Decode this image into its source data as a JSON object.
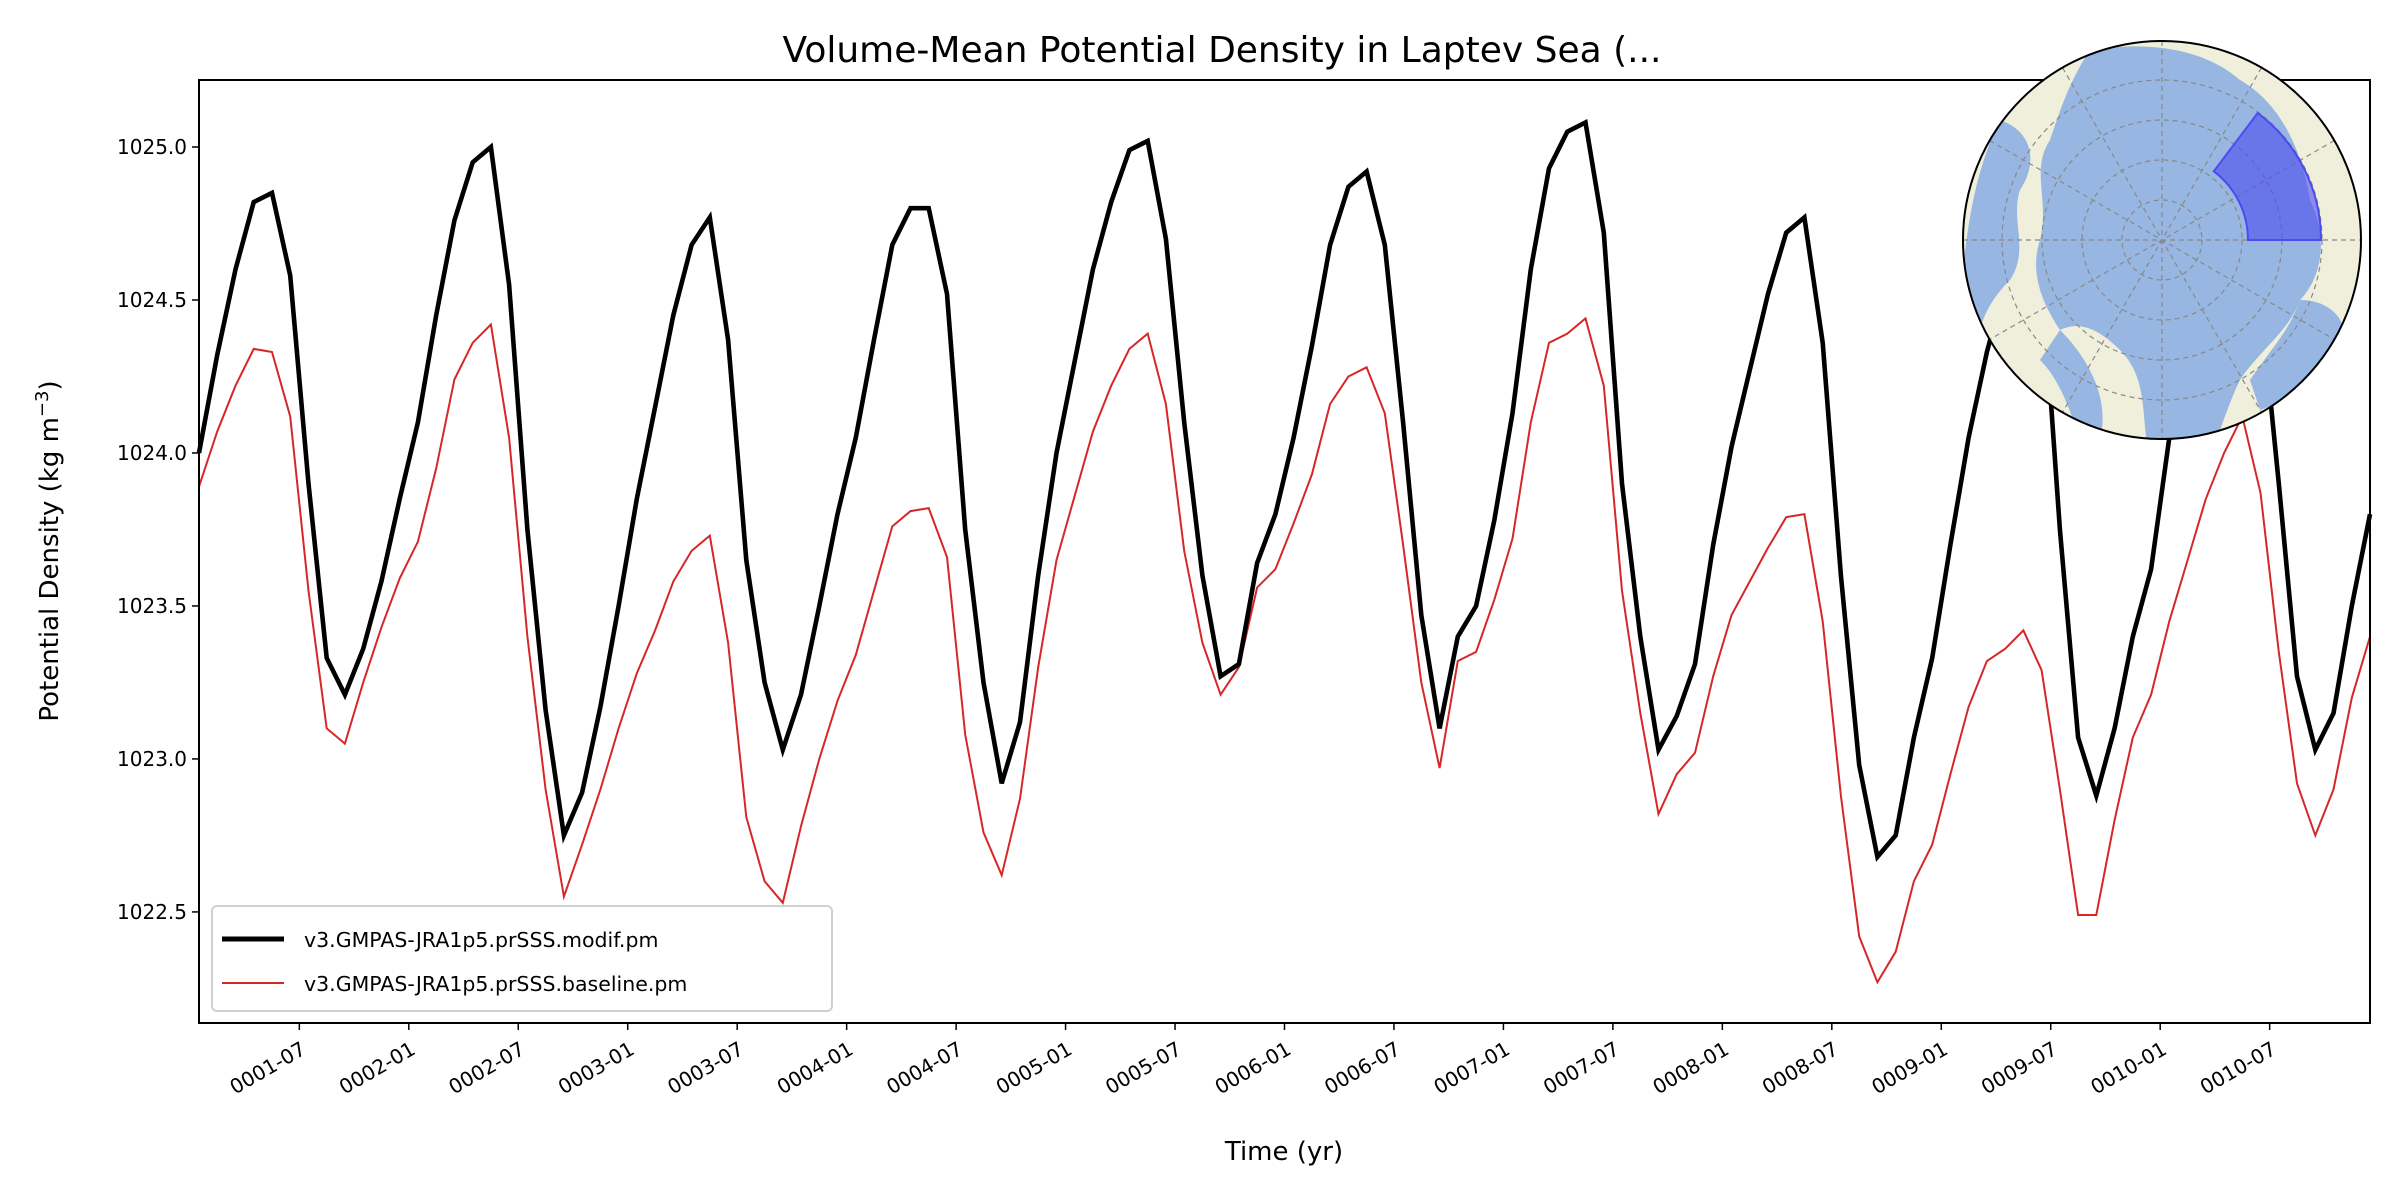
{
  "chart_data": {
    "type": "line",
    "title": "Volume-Mean Potential Density in Laptev Sea (...",
    "xlabel": "Time (yr)",
    "ylabel": "Potential Density (kg m",
    "ylabel_superscript": "−3",
    "ylabel_close": ")",
    "x_start": "0001-01",
    "x_frequency": "monthly",
    "ylim": [
      1022.137,
      1025.219
    ],
    "yticks": [
      1022.5,
      1023.0,
      1023.5,
      1024.0,
      1024.5,
      1025.0
    ],
    "ytick_labels": [
      "1022.5",
      "1023.0",
      "1023.5",
      "1024.0",
      "1024.5",
      "1025.0"
    ],
    "xtick_month_index": [
      5.5,
      11.5,
      17.5,
      23.5,
      29.5,
      35.5,
      41.5,
      47.5,
      53.5,
      59.5,
      65.5,
      71.5,
      77.5,
      83.5,
      89.5,
      95.5,
      101.5,
      107.5,
      113.5
    ],
    "xtick_labels": [
      "0001-07",
      "0002-01",
      "0002-07",
      "0003-01",
      "0003-07",
      "0004-01",
      "0004-07",
      "0005-01",
      "0005-07",
      "0006-01",
      "0006-07",
      "0007-01",
      "0007-07",
      "0008-01",
      "0008-07",
      "0009-01",
      "0009-07",
      "0010-01",
      "0010-07"
    ],
    "grid": false,
    "legend_position": "lower-left",
    "series": [
      {
        "name": "v3.GMPAS-JRA1p5.prSSS.modif.pm",
        "color": "#000000",
        "values": [
          1024.0,
          1024.32,
          1024.6,
          1024.82,
          1024.85,
          1024.58,
          1023.9,
          1023.33,
          1023.21,
          1023.36,
          1023.58,
          1023.85,
          1024.1,
          1024.45,
          1024.76,
          1024.95,
          1025.0,
          1024.55,
          1023.75,
          1023.16,
          1022.75,
          1022.89,
          1023.17,
          1023.5,
          1023.85,
          1024.15,
          1024.45,
          1024.68,
          1024.77,
          1024.37,
          1023.65,
          1023.25,
          1023.03,
          1023.21,
          1023.5,
          1023.8,
          1024.05,
          1024.37,
          1024.68,
          1024.8,
          1024.8,
          1024.52,
          1023.75,
          1023.25,
          1022.92,
          1023.12,
          1023.6,
          1024.0,
          1024.3,
          1024.6,
          1024.82,
          1024.99,
          1025.02,
          1024.7,
          1024.1,
          1023.6,
          1023.27,
          1023.31,
          1023.64,
          1023.8,
          1024.05,
          1024.35,
          1024.68,
          1024.87,
          1024.92,
          1024.68,
          1024.1,
          1023.47,
          1023.1,
          1023.4,
          1023.5,
          1023.78,
          1024.13,
          1024.6,
          1024.93,
          1025.05,
          1025.08,
          1024.72,
          1023.9,
          1023.4,
          1023.03,
          1023.14,
          1023.31,
          1023.7,
          1024.02,
          1024.27,
          1024.52,
          1024.72,
          1024.77,
          1024.36,
          1023.6,
          1022.98,
          1022.68,
          1022.75,
          1023.07,
          1023.33,
          1023.7,
          1024.05,
          1024.33,
          1024.55,
          1024.65,
          1024.6,
          1023.75,
          1023.07,
          1022.88,
          1023.1,
          1023.4,
          1023.62,
          1024.05,
          1024.35,
          1024.6,
          1024.72,
          1024.7,
          1024.5,
          1023.9,
          1023.27,
          1023.03,
          1023.15,
          1023.5,
          1023.8
        ]
      },
      {
        "name": "v3.GMPAS-JRA1p5.prSSS.baseline.pm",
        "color": "#d62728",
        "values": [
          1023.89,
          1024.07,
          1024.22,
          1024.34,
          1024.33,
          1024.12,
          1023.55,
          1023.1,
          1023.05,
          1023.25,
          1023.43,
          1023.59,
          1023.71,
          1023.95,
          1024.24,
          1024.36,
          1024.42,
          1024.05,
          1023.4,
          1022.9,
          1022.55,
          1022.72,
          1022.9,
          1023.1,
          1023.28,
          1023.42,
          1023.58,
          1023.68,
          1023.73,
          1023.38,
          1022.81,
          1022.6,
          1022.53,
          1022.78,
          1023.0,
          1023.19,
          1023.34,
          1023.55,
          1023.76,
          1023.81,
          1023.82,
          1023.66,
          1023.08,
          1022.76,
          1022.62,
          1022.87,
          1023.3,
          1023.65,
          1023.86,
          1024.07,
          1024.22,
          1024.34,
          1024.39,
          1024.16,
          1023.68,
          1023.38,
          1023.21,
          1023.3,
          1023.56,
          1023.62,
          1023.77,
          1023.93,
          1024.16,
          1024.25,
          1024.28,
          1024.13,
          1023.7,
          1023.25,
          1022.97,
          1023.32,
          1023.35,
          1023.52,
          1023.72,
          1024.1,
          1024.36,
          1024.39,
          1024.44,
          1024.22,
          1023.55,
          1023.15,
          1022.82,
          1022.95,
          1023.02,
          1023.27,
          1023.47,
          1023.58,
          1023.69,
          1023.79,
          1023.8,
          1023.45,
          1022.88,
          1022.42,
          1022.27,
          1022.37,
          1022.6,
          1022.72,
          1022.95,
          1023.17,
          1023.32,
          1023.36,
          1023.42,
          1023.29,
          1022.9,
          1022.49,
          1022.49,
          1022.8,
          1023.07,
          1023.21,
          1023.45,
          1023.65,
          1023.85,
          1024.0,
          1024.12,
          1023.87,
          1023.35,
          1022.92,
          1022.75,
          1022.9,
          1023.2,
          1023.4
        ]
      }
    ],
    "inset_map": {
      "land_color": "#efefdb",
      "ocean_color": "#97b6e1",
      "region_color": "#4b4bf0"
    }
  }
}
